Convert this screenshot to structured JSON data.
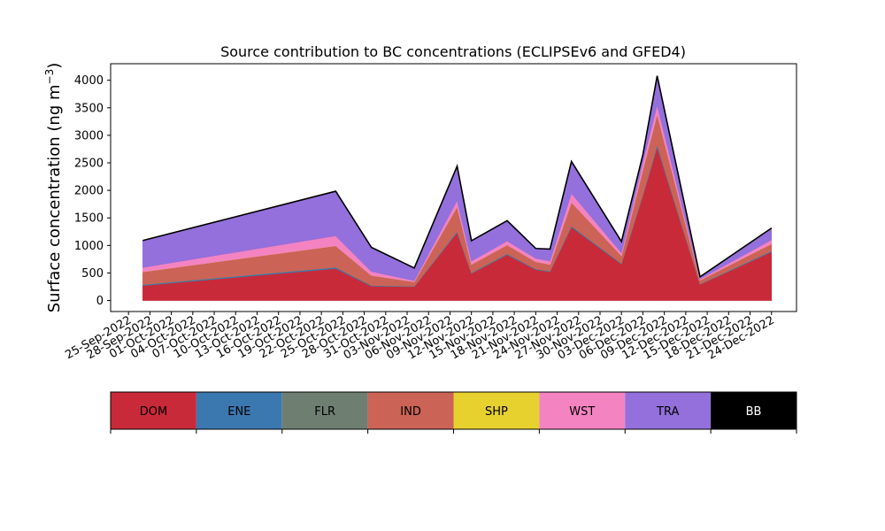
{
  "chart_data": {
    "type": "area",
    "title": "Source contribution to BC concentrations (ECLIPSEv6 and GFED4)",
    "ylabel": "Surface concentration (ng m",
    "ylabel_sup": "−3",
    "ylabel_close": ")",
    "ylim": [
      -200,
      4300
    ],
    "yticks": [
      0,
      500,
      1000,
      1500,
      2000,
      2500,
      3000,
      3500,
      4000
    ],
    "x_tick_labels": [
      "25-Sep-2022",
      "28-Sep-2022",
      "01-Oct-2022",
      "04-Oct-2022",
      "07-Oct-2022",
      "10-Oct-2022",
      "13-Oct-2022",
      "16-Oct-2022",
      "19-Oct-2022",
      "22-Oct-2022",
      "25-Oct-2022",
      "28-Oct-2022",
      "31-Oct-2022",
      "03-Nov-2022",
      "06-Nov-2022",
      "09-Nov-2022",
      "12-Nov-2022",
      "15-Nov-2022",
      "18-Nov-2022",
      "21-Nov-2022",
      "24-Nov-2022",
      "27-Nov-2022",
      "30-Nov-2022",
      "03-Dec-2022",
      "06-Dec-2022",
      "09-Dec-2022",
      "12-Dec-2022",
      "15-Dec-2022",
      "18-Dec-2022",
      "21-Dec-2022",
      "24-Dec-2022"
    ],
    "dates": [
      "2022-09-27",
      "2022-10-24",
      "2022-10-29",
      "2022-11-04",
      "2022-11-10",
      "2022-11-12",
      "2022-11-17",
      "2022-11-21",
      "2022-11-23",
      "2022-11-26",
      "2022-12-03",
      "2022-12-06",
      "2022-12-08",
      "2022-12-14",
      "2022-12-24"
    ],
    "series": [
      {
        "name": "DOM",
        "color": "#c92a39",
        "values": [
          270,
          580,
          260,
          250,
          1230,
          490,
          830,
          560,
          520,
          1330,
          660,
          1900,
          2780,
          290,
          880
        ]
      },
      {
        "name": "ENE",
        "color": "#3b78b0",
        "values": [
          15,
          20,
          10,
          5,
          20,
          10,
          15,
          10,
          10,
          20,
          10,
          20,
          40,
          5,
          15
        ]
      },
      {
        "name": "FLR",
        "color": "#6e7f72",
        "values": [
          5,
          5,
          5,
          5,
          5,
          5,
          5,
          5,
          5,
          5,
          5,
          5,
          5,
          5,
          5
        ]
      },
      {
        "name": "IND",
        "color": "#cb6357",
        "values": [
          230,
          390,
          180,
          80,
          450,
          150,
          160,
          130,
          120,
          430,
          140,
          450,
          560,
          70,
          130
        ]
      },
      {
        "name": "SHP",
        "color": "#e6d12e",
        "values": [
          0,
          0,
          0,
          0,
          0,
          0,
          0,
          0,
          0,
          0,
          0,
          0,
          0,
          0,
          0
        ]
      },
      {
        "name": "WST",
        "color": "#f483c1",
        "values": [
          80,
          180,
          70,
          20,
          110,
          60,
          70,
          60,
          60,
          160,
          50,
          130,
          160,
          20,
          70
        ]
      },
      {
        "name": "TRA",
        "color": "#9370db",
        "values": [
          490,
          810,
          440,
          230,
          625,
          370,
          370,
          180,
          220,
          580,
          205,
          145,
          535,
          40,
          215
        ]
      },
      {
        "name": "BB",
        "color": "#000000",
        "values": [
          0,
          0,
          0,
          0,
          0,
          0,
          0,
          0,
          0,
          0,
          0,
          0,
          0,
          0,
          0
        ]
      }
    ],
    "legend": [
      {
        "label": "DOM",
        "color": "#c92a39",
        "text_color": "#000000"
      },
      {
        "label": "ENE",
        "color": "#3b78b0",
        "text_color": "#000000"
      },
      {
        "label": "FLR",
        "color": "#6e7f72",
        "text_color": "#000000"
      },
      {
        "label": "IND",
        "color": "#cb6357",
        "text_color": "#000000"
      },
      {
        "label": "SHP",
        "color": "#e6d12e",
        "text_color": "#000000"
      },
      {
        "label": "WST",
        "color": "#f483c1",
        "text_color": "#000000"
      },
      {
        "label": "TRA",
        "color": "#9370db",
        "text_color": "#000000"
      },
      {
        "label": "BB",
        "color": "#000000",
        "text_color": "#ffffff"
      }
    ],
    "legend_placement": "below",
    "grid": false
  }
}
